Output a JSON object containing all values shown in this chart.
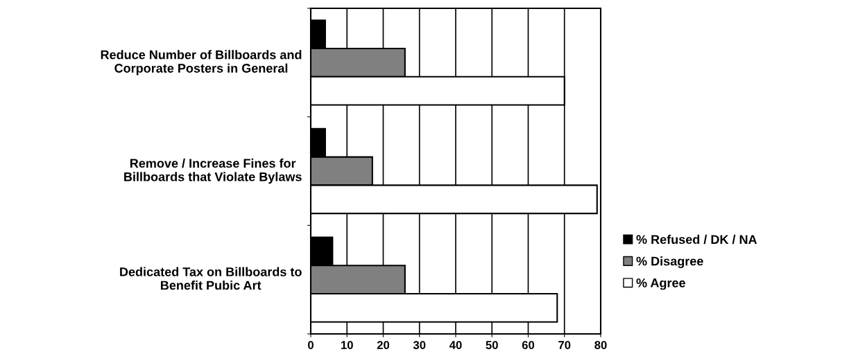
{
  "chart_data": {
    "type": "bar",
    "orientation": "horizontal",
    "categories": [
      "Reduce Number of Billboards and\nCorporate Posters in General",
      "Remove / Increase Fines for\nBillboards that Violate Bylaws",
      "Dedicated Tax on Billboards to\nBenefit Pubic Art"
    ],
    "series": [
      {
        "name": "% Refused / DK / NA",
        "color": "#000000",
        "values": [
          4,
          4,
          6
        ]
      },
      {
        "name": "% Disagree",
        "color": "#808080",
        "values": [
          26,
          17,
          26
        ]
      },
      {
        "name": "% Agree",
        "color": "#ffffff",
        "values": [
          70,
          79,
          68
        ]
      }
    ],
    "xlim": [
      0,
      80
    ],
    "xticks": [
      0,
      10,
      20,
      30,
      40,
      50,
      60,
      70,
      80
    ],
    "grid": "x",
    "legend": "right"
  }
}
